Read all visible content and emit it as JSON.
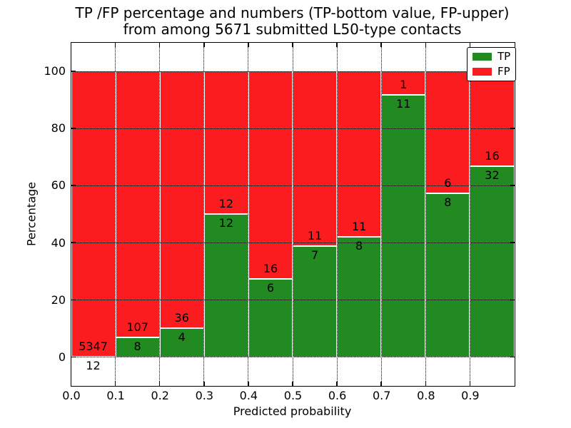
{
  "title": {
    "line1": "TP /FP percentage and numbers (TP-bottom value, FP-upper)",
    "line2": "from among 5671 submitted L50-type contacts"
  },
  "axes": {
    "xlabel": "Predicted probability",
    "ylabel": "Percentage",
    "x_tick_labels": [
      "0.0",
      "0.1",
      "0.2",
      "0.3",
      "0.4",
      "0.5",
      "0.6",
      "0.7",
      "0.8",
      "0.9"
    ],
    "x_tick_values": [
      0.0,
      0.1,
      0.2,
      0.3,
      0.4,
      0.5,
      0.6,
      0.7,
      0.8,
      0.9
    ],
    "y_tick_labels": [
      "0",
      "20",
      "40",
      "60",
      "80",
      "100"
    ],
    "y_tick_values": [
      0,
      20,
      40,
      60,
      80,
      100
    ],
    "xlim": [
      0.0,
      1.0
    ],
    "ylim": [
      -10,
      110
    ],
    "grid_style": "dotted"
  },
  "legend": {
    "position": "upper right",
    "items": [
      {
        "label": "TP",
        "color_key": "tp"
      },
      {
        "label": "FP",
        "color_key": "fp"
      }
    ]
  },
  "colors": {
    "tp": "#218a21",
    "fp": "#fb1c20",
    "bar_edge": "#ffffff",
    "grid": "#000000",
    "text": "#000000",
    "background": "#ffffff"
  },
  "chart_data": {
    "type": "bar",
    "stacked": true,
    "normalized": "percent",
    "title": "TP /FP percentage and numbers (TP-bottom value, FP-upper) from among 5671 submitted L50-type contacts",
    "xlabel": "Predicted probability",
    "ylabel": "Percentage",
    "total_contacts": 5671,
    "legend_entries": [
      "TP",
      "FP"
    ],
    "categories": [
      "0.0-0.1",
      "0.1-0.2",
      "0.2-0.3",
      "0.3-0.4",
      "0.4-0.5",
      "0.5-0.6",
      "0.6-0.7",
      "0.7-0.8",
      "0.8-0.9",
      "0.9-1.0"
    ],
    "series": [
      {
        "name": "TP",
        "values": [
          12,
          8,
          4,
          12,
          6,
          7,
          8,
          11,
          8,
          32
        ]
      },
      {
        "name": "FP",
        "values": [
          5347,
          107,
          36,
          12,
          16,
          11,
          11,
          1,
          6,
          16
        ]
      }
    ],
    "bins": [
      {
        "range": [
          0.0,
          0.1
        ],
        "tp": 12,
        "fp": 5347,
        "tp_percent": 0.22
      },
      {
        "range": [
          0.1,
          0.2
        ],
        "tp": 8,
        "fp": 107,
        "tp_percent": 6.96
      },
      {
        "range": [
          0.2,
          0.3
        ],
        "tp": 4,
        "fp": 36,
        "tp_percent": 10.0
      },
      {
        "range": [
          0.3,
          0.4
        ],
        "tp": 12,
        "fp": 12,
        "tp_percent": 50.0
      },
      {
        "range": [
          0.4,
          0.5
        ],
        "tp": 6,
        "fp": 16,
        "tp_percent": 27.27
      },
      {
        "range": [
          0.5,
          0.6
        ],
        "tp": 7,
        "fp": 11,
        "tp_percent": 38.89
      },
      {
        "range": [
          0.6,
          0.7
        ],
        "tp": 8,
        "fp": 11,
        "tp_percent": 42.11
      },
      {
        "range": [
          0.7,
          0.8
        ],
        "tp": 11,
        "fp": 1,
        "tp_percent": 91.67
      },
      {
        "range": [
          0.8,
          0.9
        ],
        "tp": 8,
        "fp": 6,
        "tp_percent": 57.14
      },
      {
        "range": [
          0.9,
          1.0
        ],
        "tp": 32,
        "fp": 16,
        "tp_percent": 66.67
      }
    ],
    "xlim": [
      0.0,
      1.0
    ],
    "ylim": [
      -10,
      110
    ]
  }
}
